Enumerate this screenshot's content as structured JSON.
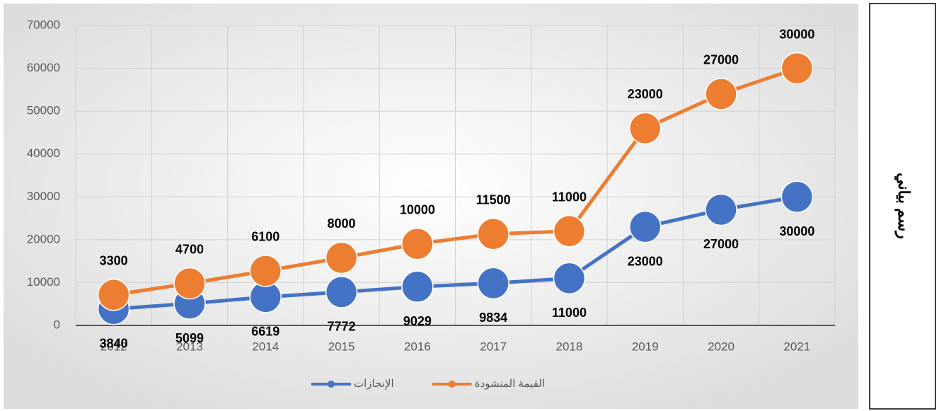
{
  "chart_data": {
    "type": "line",
    "stacked": true,
    "categories": [
      "2012",
      "2013",
      "2014",
      "2015",
      "2016",
      "2017",
      "2018",
      "2019",
      "2020",
      "2021"
    ],
    "series": [
      {
        "name": "الإنجازات",
        "color": "#4472c4",
        "values": [
          3840,
          5099,
          6619,
          7772,
          9029,
          9834,
          11000,
          23000,
          27000,
          30000
        ]
      },
      {
        "name": "القيمة المنشودة",
        "color": "#ed7d31",
        "values": [
          3300,
          4700,
          6100,
          8000,
          10000,
          11500,
          11000,
          23000,
          27000,
          30000
        ]
      }
    ],
    "ylim": [
      0,
      70000
    ],
    "yticks": [
      0,
      10000,
      20000,
      30000,
      40000,
      50000,
      60000,
      70000
    ],
    "grid": true,
    "legend": "bottom"
  },
  "side_label": "رسم بياني"
}
